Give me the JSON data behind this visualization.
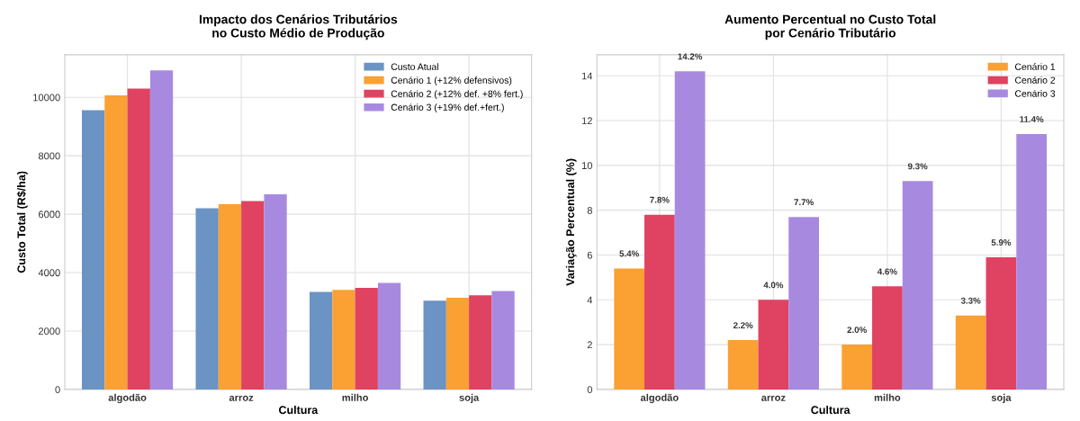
{
  "chart_data": [
    {
      "type": "bar",
      "title": "Impacto dos Cenários Tributários\nno Custo Médio de Produção",
      "xlabel": "Cultura",
      "ylabel": "Custo Total (R$/ha)",
      "categories": [
        "algodão",
        "arroz",
        "milho",
        "soja"
      ],
      "series": [
        {
          "name": "Custo Atual",
          "color": "#6b93c4",
          "values": [
            9560,
            6200,
            3340,
            3040
          ]
        },
        {
          "name": "Cenário 1 (+12% defensivos)",
          "color": "#fba033",
          "values": [
            10070,
            6340,
            3410,
            3140
          ]
        },
        {
          "name": "Cenário 2 (+12% def. +8% fert.)",
          "color": "#e04262",
          "values": [
            10300,
            6450,
            3480,
            3220
          ]
        },
        {
          "name": "Cenário 3 (+19% def.+fert.)",
          "color": "#a78ae0",
          "values": [
            10920,
            6680,
            3650,
            3370
          ]
        }
      ],
      "ylim": [
        0,
        11460
      ],
      "yticks": [
        0,
        2000,
        4000,
        6000,
        8000,
        10000
      ],
      "grid": true,
      "legend": "top right"
    },
    {
      "type": "bar",
      "title": "Aumento Percentual no Custo Total\npor Cenário Tributário",
      "xlabel": "Cultura",
      "ylabel": "Variação Percentual (%)",
      "categories": [
        "algodão",
        "arroz",
        "milho",
        "soja"
      ],
      "series": [
        {
          "name": "Cenário 1",
          "color": "#fba033",
          "values": [
            5.4,
            2.2,
            2.0,
            3.3
          ],
          "value_labels": [
            "5.4%",
            "2.2%",
            "2.0%",
            "3.3%"
          ]
        },
        {
          "name": "Cenário 2",
          "color": "#e04262",
          "values": [
            7.8,
            4.0,
            4.6,
            5.9
          ],
          "value_labels": [
            "7.8%",
            "4.0%",
            "4.6%",
            "5.9%"
          ]
        },
        {
          "name": "Cenário 3",
          "color": "#a78ae0",
          "values": [
            14.2,
            7.7,
            9.3,
            11.4
          ],
          "value_labels": [
            "14.2%",
            "7.7%",
            "9.3%",
            "11.4%"
          ]
        }
      ],
      "ylim": [
        0,
        14.94
      ],
      "yticks": [
        0,
        2,
        4,
        6,
        8,
        10,
        12,
        14
      ],
      "grid": true,
      "legend": "top right"
    }
  ]
}
